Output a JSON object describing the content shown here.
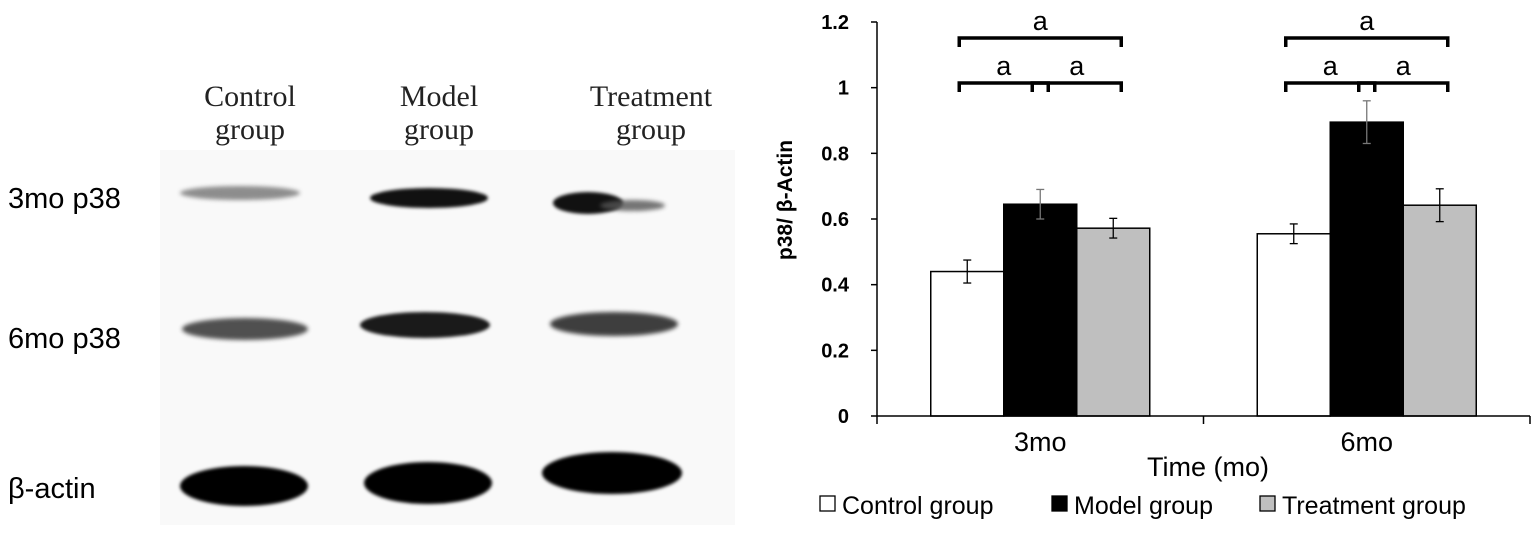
{
  "blot": {
    "lanes": [
      {
        "line1": "Control",
        "line2": "group"
      },
      {
        "line1": "Model",
        "line2": "group"
      },
      {
        "line1": "Treatment",
        "line2": "group"
      }
    ],
    "rows": [
      {
        "label": "3mo p38"
      },
      {
        "label": "6mo p38"
      },
      {
        "label": "β-actin"
      }
    ]
  },
  "chart_data": {
    "type": "bar",
    "categories": [
      "3mo",
      "6mo"
    ],
    "series": [
      {
        "name": "Control group",
        "values": [
          0.44,
          0.555
        ],
        "errors": [
          0.035,
          0.03
        ],
        "color": "#ffffff"
      },
      {
        "name": "Model group",
        "values": [
          0.645,
          0.895
        ],
        "errors": [
          0.045,
          0.065
        ],
        "color": "#000000"
      },
      {
        "name": "Treatment group",
        "values": [
          0.572,
          0.642
        ],
        "errors": [
          0.03,
          0.05
        ],
        "color": "#bfbfbf"
      }
    ],
    "ylim": [
      0,
      1.2
    ],
    "yticks": [
      "0",
      "0.2",
      "0.4",
      "0.6",
      "0.8",
      "1",
      "1.2"
    ],
    "ylabel": "p38/ β-Actin",
    "xlabel": "Time (mo)",
    "legend_position": "bottom",
    "significance": [
      {
        "group": "3mo",
        "from": 0,
        "to": 2,
        "level": 2,
        "label": "a"
      },
      {
        "group": "3mo",
        "from": 0,
        "to": 1,
        "level": 1,
        "label": "a"
      },
      {
        "group": "3mo",
        "from": 1,
        "to": 2,
        "level": 1,
        "label": "a"
      },
      {
        "group": "6mo",
        "from": 0,
        "to": 2,
        "level": 2,
        "label": "a"
      },
      {
        "group": "6mo",
        "from": 0,
        "to": 1,
        "level": 1,
        "label": "a"
      },
      {
        "group": "6mo",
        "from": 1,
        "to": 2,
        "level": 1,
        "label": "a"
      }
    ]
  }
}
